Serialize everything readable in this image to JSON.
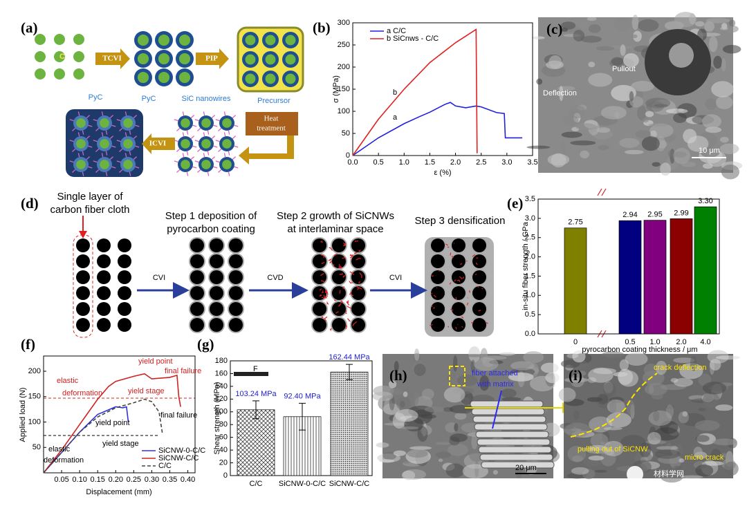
{
  "panels": {
    "a": {
      "label": "(a)",
      "core": "C",
      "step1": "TCVI",
      "step2": "PIP",
      "pyc_1": "PyC",
      "pyc_2": "PyC",
      "nanowires": "SiC nanowires",
      "precursor": "Precursor",
      "heat": [
        "Heat",
        "treatment"
      ],
      "step3": "ICVI"
    },
    "b": {
      "label": "(b)"
    },
    "c": {
      "label": "(c)",
      "pullout": "Pullout",
      "deflection": "Deflection",
      "scale": "10 μm"
    },
    "d": {
      "label": "(d)",
      "start": [
        "Single layer of",
        "carbon fiber cloth"
      ],
      "step1": [
        "Step 1 deposition of",
        "pyrocarbon coating"
      ],
      "step2": [
        "Step 2 growth of SiCNWs",
        "at interlaminar space"
      ],
      "step3": "Step 3 densification",
      "arrow1": "CVI",
      "arrow2": "CVD",
      "arrow3": "CVI"
    },
    "e": {
      "label": "(e)"
    },
    "f": {
      "label": "(f)"
    },
    "g": {
      "label": "(g)",
      "icon": "F"
    },
    "h": {
      "label": "(h)",
      "note": [
        "fiber attached",
        "with matrix"
      ],
      "scale": "20 μm"
    },
    "i": {
      "label": "(i)",
      "deflection": "crack deflection",
      "pulling": "pulling out of SiCNW",
      "micro": "micro crack",
      "watermark": "材料学网"
    }
  },
  "chart_data": [
    {
      "type": "line",
      "xlabel": "ε  (%)",
      "ylabel": "σ (MPa)",
      "xlim": [
        0,
        3.5
      ],
      "ylim": [
        0,
        300
      ],
      "xticks": [
        {
          "value": 0,
          "label": "0.0"
        },
        0.5,
        {
          "value": 1,
          "label": "1.0"
        },
        1.5,
        {
          "value": 2,
          "label": "2.0"
        },
        2.5,
        {
          "value": 3,
          "label": "3.0"
        },
        3.5
      ],
      "yticks": [
        0,
        50,
        100,
        150,
        200,
        250,
        300
      ],
      "annotations": [
        "a",
        "b"
      ],
      "series": [
        {
          "name": "a       C/C",
          "color": "#1f1fe0",
          "x": [
            0,
            0.5,
            1.0,
            1.3,
            1.5,
            1.8,
            1.9,
            2.0,
            2.2,
            2.4,
            2.5,
            2.8,
            2.95,
            2.97,
            3.3
          ],
          "values": [
            0,
            40,
            72,
            88,
            98,
            116,
            120,
            112,
            108,
            112,
            110,
            97,
            95,
            40,
            40
          ]
        },
        {
          "name": "b SiCnws - C/C",
          "color": "#e02020",
          "x": [
            0,
            0.5,
            1.0,
            1.5,
            2.0,
            2.4,
            2.42
          ],
          "values": [
            0,
            82,
            150,
            210,
            255,
            285,
            5
          ]
        }
      ]
    },
    {
      "type": "bar",
      "xlabel": "pyrocarbon coating thickness / μm",
      "ylabel": "in-situ fiber strength / GPa",
      "categories": [
        "0",
        "0.5",
        "1.0",
        "2.0",
        "4.0"
      ],
      "values": [
        2.75,
        2.94,
        2.95,
        2.99,
        3.3
      ],
      "value_labels": [
        "2.75",
        "2.94",
        "2.95",
        "2.99",
        "3.30"
      ],
      "colors": [
        "#808000",
        "#000080",
        "#800080",
        "#8b0000",
        "#008000"
      ],
      "ylim": [
        0,
        3.5
      ],
      "yticks": [
        {
          "value": 0,
          "label": "0.0"
        },
        0.5,
        {
          "value": 1,
          "label": "1.0"
        },
        1.5,
        {
          "value": 2,
          "label": "2.0"
        },
        2.5,
        {
          "value": 3,
          "label": "3.0"
        },
        3.5
      ]
    },
    {
      "type": "line",
      "xlabel": "Displacement (mm)",
      "ylabel": "Applied load (N)",
      "xlim": [
        0,
        0.42
      ],
      "ylim": [
        0,
        230
      ],
      "xticks": [
        0.05,
        {
          "value": 0.1,
          "label": "0.10"
        },
        0.15,
        {
          "value": 0.2,
          "label": "0.20"
        },
        0.25,
        {
          "value": 0.3,
          "label": "0.30"
        },
        0.35,
        {
          "value": 0.4,
          "label": "0.40"
        }
      ],
      "yticks": [
        50,
        100,
        150,
        200
      ],
      "annotations": [
        "elastic",
        "deformation",
        "yield point",
        "final failure",
        "yield stage",
        "yield point",
        "final failure",
        "elastic",
        "deformation",
        "yield stage"
      ],
      "series": [
        {
          "name": "SiCNW-0-C/C",
          "color": "#3030e0",
          "x": [
            0,
            0.05,
            0.1,
            0.15,
            0.2,
            0.22,
            0.23,
            0.235
          ],
          "values": [
            0,
            40,
            80,
            115,
            130,
            128,
            130,
            100
          ]
        },
        {
          "name": "SiCNW-C/C",
          "color": "#d02020",
          "x": [
            0,
            0.05,
            0.1,
            0.15,
            0.18,
            0.2,
            0.25,
            0.28,
            0.3,
            0.35,
            0.37,
            0.375,
            0.38
          ],
          "values": [
            0,
            45,
            95,
            145,
            170,
            180,
            190,
            195,
            185,
            188,
            192,
            150,
            130
          ]
        },
        {
          "name": "C/C",
          "color": "#444444",
          "linestyle": "dashed",
          "x": [
            0,
            0.05,
            0.1,
            0.15,
            0.2,
            0.25,
            0.28,
            0.3,
            0.32,
            0.33
          ],
          "values": [
            0,
            40,
            80,
            110,
            128,
            138,
            145,
            140,
            120,
            75
          ]
        }
      ]
    },
    {
      "type": "bar",
      "ylabel": "Shear strength (MPa)",
      "categories": [
        "C/C",
        "SiCNW-0-C/C",
        "SiCNW-C/C"
      ],
      "values": [
        103.24,
        92.4,
        162.44
      ],
      "value_labels": [
        "103.24 MPa",
        "92.40 MPa",
        "162.44 MPa"
      ],
      "errors": [
        14,
        21,
        12
      ],
      "ylim": [
        0,
        180
      ],
      "yticks": [
        0,
        20,
        40,
        60,
        80,
        100,
        120,
        140,
        160,
        180
      ]
    }
  ]
}
